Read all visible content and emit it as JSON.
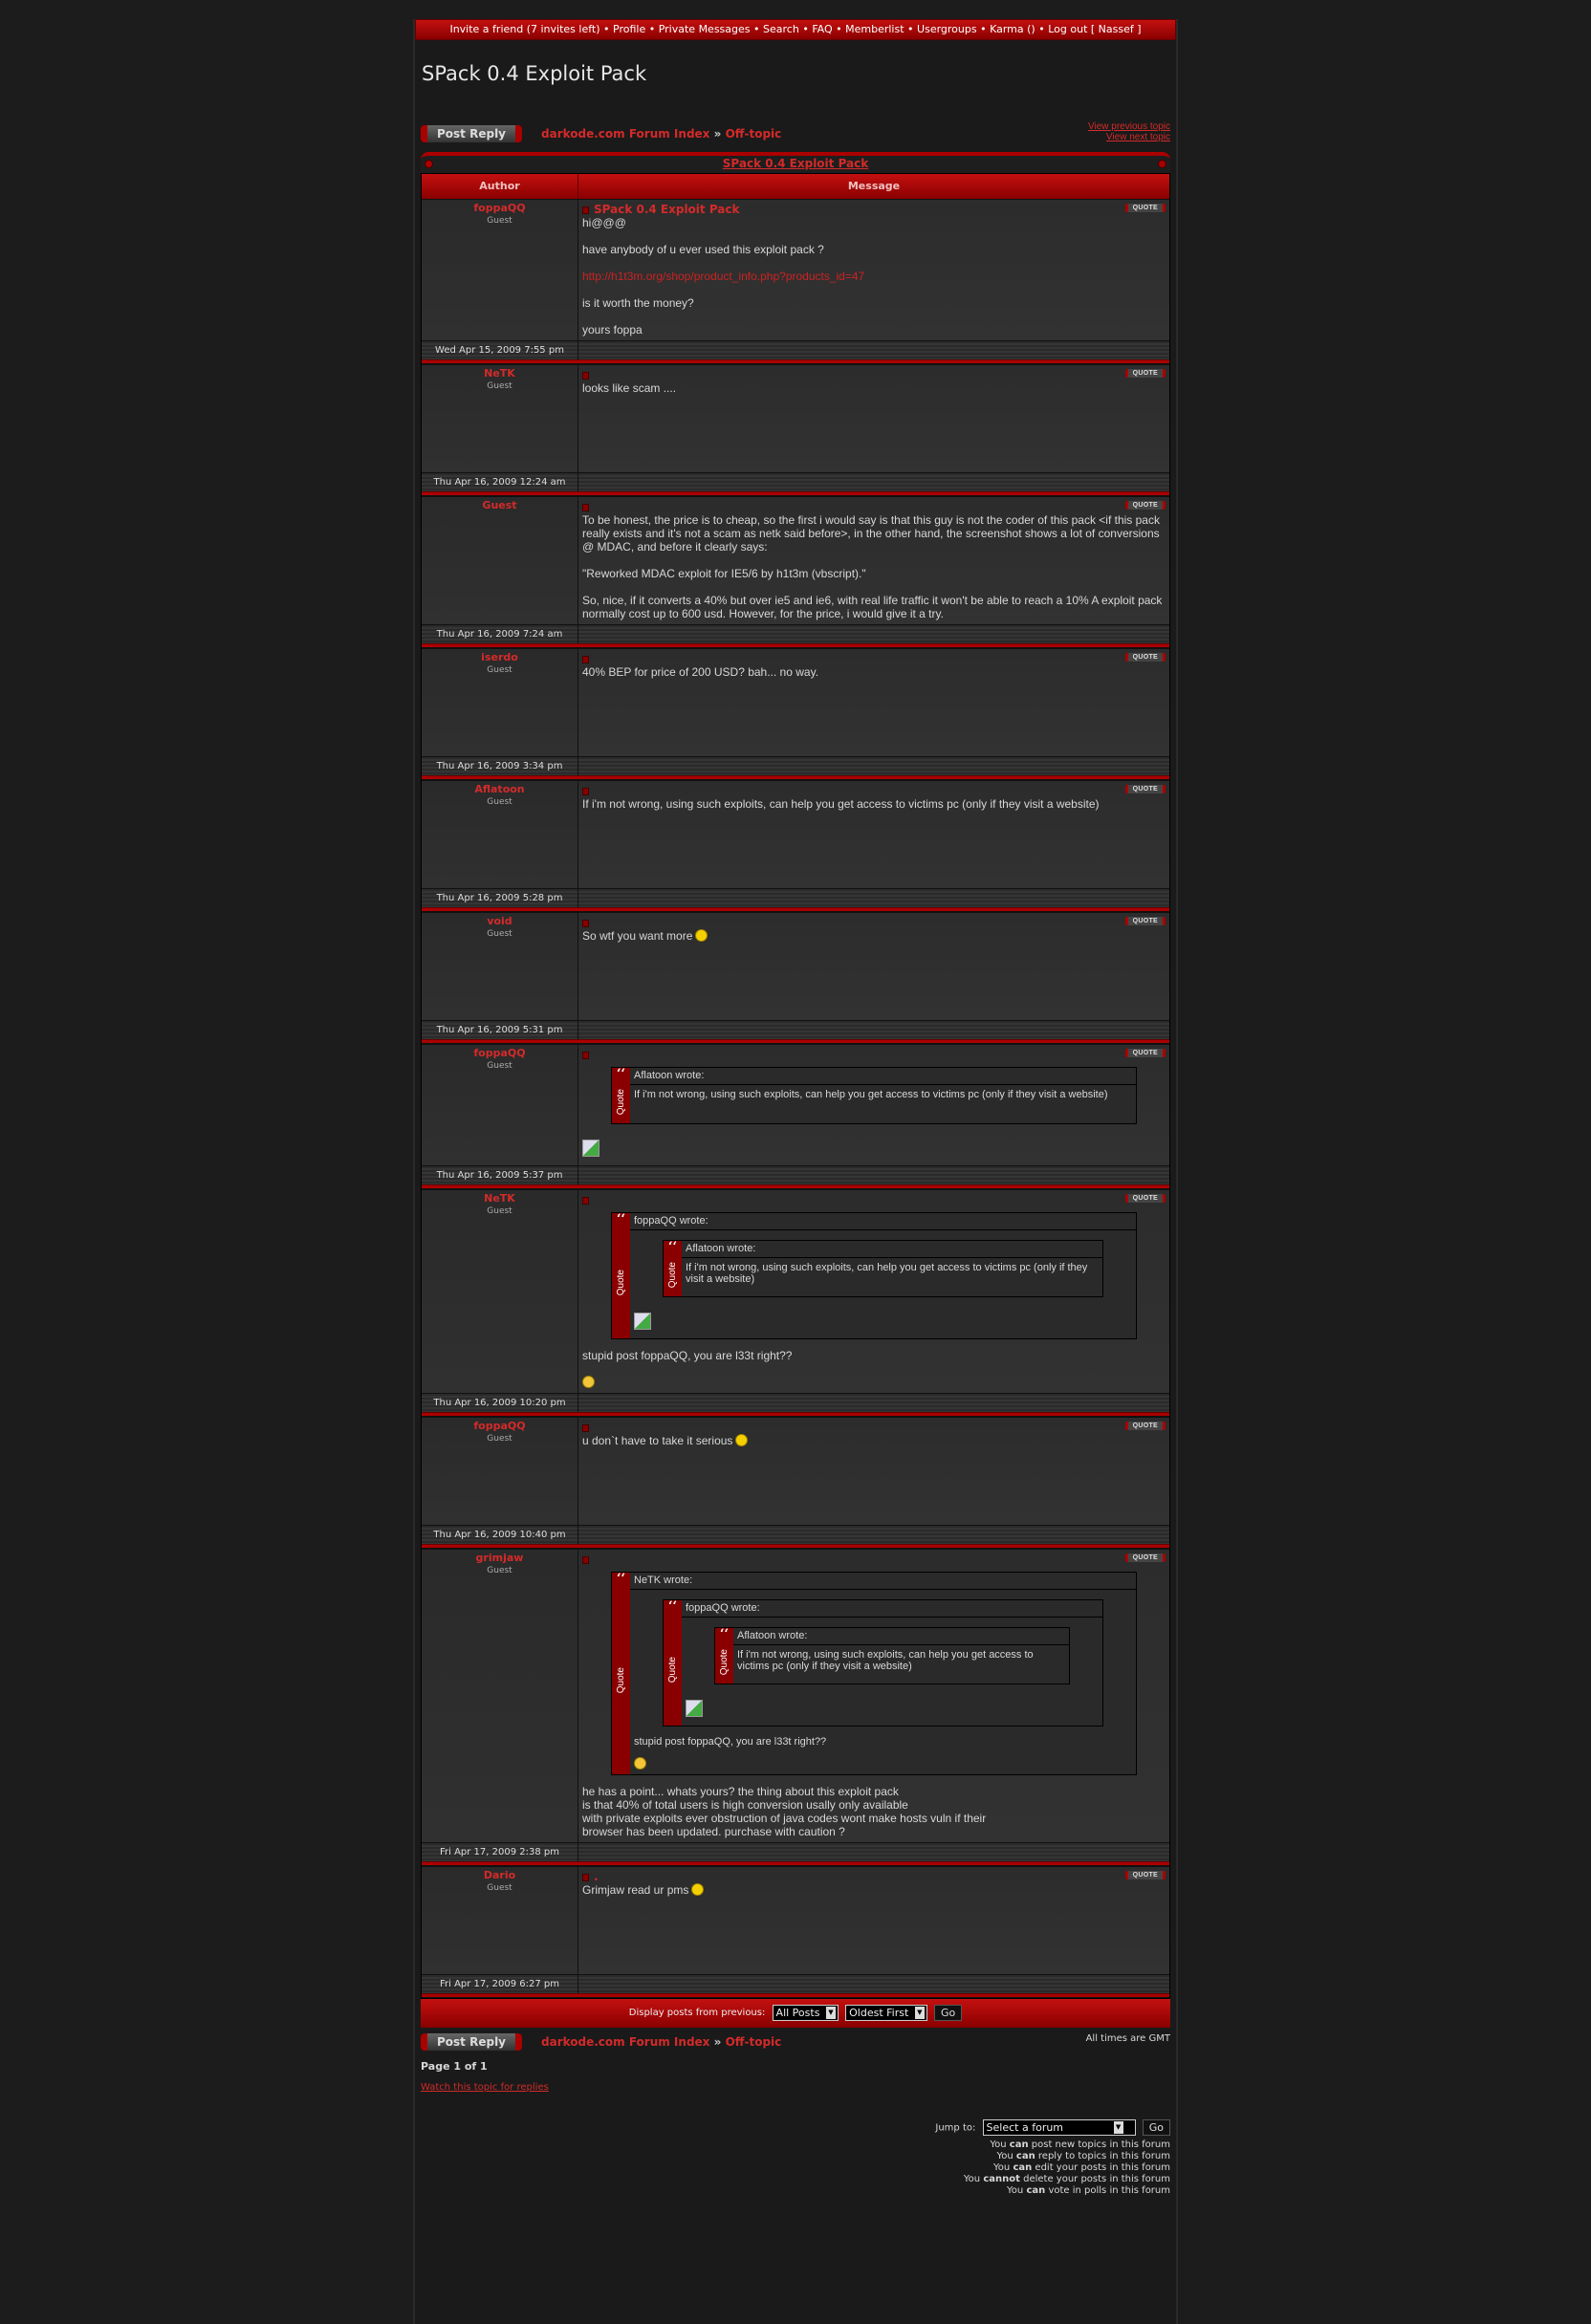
{
  "topnav": {
    "items": [
      "Invite a friend (7 invites left)",
      "Profile",
      "Private Messages",
      "Search",
      "FAQ",
      "Memberlist",
      "Usergroups",
      "Karma ()",
      "Log out [ Nassef ]"
    ],
    "separator": "•"
  },
  "page_title": "SPack 0.4 Exploit Pack",
  "post_reply_label": "Post Reply",
  "breadcrumb": {
    "forum_index": "darkode.com Forum Index",
    "separator": "»",
    "forum": "Off-topic"
  },
  "view_previous": "View previous topic",
  "view_next": "View next topic",
  "topic_title": "SPack 0.4 Exploit Pack",
  "columns": {
    "author": "Author",
    "message": "Message"
  },
  "quote_button": "QUOTE",
  "quote_side_label": "Quote",
  "quote_mark": "‘‘",
  "accent_color": "#b00000",
  "link_color": "#d42a2a",
  "posts": [
    {
      "author": "foppaQQ",
      "role": "Guest",
      "subject": "SPack 0.4 Exploit Pack",
      "date": "Wed Apr 15, 2009 7:55 pm",
      "content": [
        {
          "type": "text",
          "text": "hi@@@"
        },
        {
          "type": "text",
          "text": "have anybody of u ever used this exploit pack ?"
        },
        {
          "type": "link",
          "text": "http://h1t3m.org/shop/product_info.php?products_id=47"
        },
        {
          "type": "text",
          "text": "is it worth the money?"
        },
        {
          "type": "text",
          "text": "yours foppa"
        }
      ]
    },
    {
      "author": "NeTK",
      "role": "Guest",
      "subject": "",
      "date": "Thu Apr 16, 2009 12:24 am",
      "content": [
        {
          "type": "text",
          "text": "looks like scam ...."
        }
      ]
    },
    {
      "author": "Guest",
      "role": "",
      "subject": "",
      "date": "Thu Apr 16, 2009 7:24 am",
      "content": [
        {
          "type": "text",
          "text": "To be honest, the price is to cheap, so the first i would say is that this guy is not the coder of this pack <if this pack really exists and it's not a scam as netk said before>, in the other hand, the screenshot shows a lot of conversions @ MDAC, and before it clearly says:"
        },
        {
          "type": "text",
          "text": "\"Reworked MDAC exploit for IE5/6 by h1t3m (vbscript).\""
        },
        {
          "type": "text",
          "text": "So, nice, if it converts a 40% but over ie5 and ie6, with real life traffic it won't be able to reach a 10% A exploit pack normally cost up to 600 usd. However, for the price, i would give it a try."
        }
      ]
    },
    {
      "author": "iserdo",
      "role": "Guest",
      "subject": "",
      "date": "Thu Apr 16, 2009 3:34 pm",
      "content": [
        {
          "type": "text",
          "text": "40% BEP for price of 200 USD? bah... no way."
        }
      ]
    },
    {
      "author": "Aflatoon",
      "role": "Guest",
      "subject": "",
      "date": "Thu Apr 16, 2009 5:28 pm",
      "content": [
        {
          "type": "text",
          "text": "If i'm not wrong, using such exploits, can help you get access to victims pc (only if they visit a website)"
        }
      ]
    },
    {
      "author": "void",
      "role": "Guest",
      "subject": "",
      "date": "Thu Apr 16, 2009 5:31 pm",
      "content": [
        {
          "type": "text",
          "text": "So wtf you want more",
          "smiley": "tongue-smiley"
        }
      ]
    },
    {
      "author": "foppaQQ",
      "role": "Guest",
      "subject": "",
      "date": "Thu Apr 16, 2009 5:37 pm",
      "content": [
        {
          "type": "quote",
          "header": "Aflatoon wrote:",
          "content": [
            {
              "type": "text",
              "text": "If i'm not wrong, using such exploits, can help you get access to victims pc (only if they visit a website)"
            }
          ]
        },
        {
          "type": "image"
        }
      ]
    },
    {
      "author": "NeTK",
      "role": "Guest",
      "subject": "",
      "date": "Thu Apr 16, 2009 10:20 pm",
      "content": [
        {
          "type": "quote",
          "header": "foppaQQ wrote:",
          "content": [
            {
              "type": "quote",
              "header": "Aflatoon wrote:",
              "content": [
                {
                  "type": "text",
                  "text": "If i'm not wrong, using such exploits, can help you get access to victims pc (only if they visit a website)"
                }
              ]
            },
            {
              "type": "image"
            }
          ]
        },
        {
          "type": "text",
          "text": "stupid post foppaQQ, you are l33t right??"
        },
        {
          "type": "smiley",
          "smiley": "dizzy-smiley"
        }
      ]
    },
    {
      "author": "foppaQQ",
      "role": "Guest",
      "subject": "",
      "date": "Thu Apr 16, 2009 10:40 pm",
      "content": [
        {
          "type": "text",
          "text": "u don`t have to take it serious",
          "smiley": "tongue-smiley"
        }
      ]
    },
    {
      "author": "grimjaw",
      "role": "Guest",
      "subject": "",
      "date": "Fri Apr 17, 2009 2:38 pm",
      "content": [
        {
          "type": "quote",
          "header": "NeTK wrote:",
          "content": [
            {
              "type": "quote",
              "header": "foppaQQ wrote:",
              "content": [
                {
                  "type": "quote",
                  "header": "Aflatoon wrote:",
                  "content": [
                    {
                      "type": "text",
                      "text": "If i'm not wrong, using such exploits, can help you get access to victims pc (only if they visit a website)"
                    }
                  ]
                },
                {
                  "type": "image"
                }
              ]
            },
            {
              "type": "text",
              "text": "stupid post foppaQQ, you are l33t right??"
            },
            {
              "type": "smiley",
              "smiley": "dizzy-smiley"
            }
          ]
        },
        {
          "type": "text",
          "text": "he has a point... whats yours? the thing about this exploit pack\nis that 40% of total users is high conversion usally only available\nwith private exploits ever obstruction of java codes wont make hosts vuln if their\nbrowser has been updated. purchase with caution ?"
        }
      ]
    },
    {
      "author": "Dario",
      "role": "Guest",
      "subject": ".",
      "date": "Fri Apr 17, 2009 6:27 pm",
      "content": [
        {
          "type": "text",
          "text": "Grimjaw read ur pms",
          "smiley": "tongue-smiley"
        }
      ]
    }
  ],
  "display_bar": {
    "label": "Display posts from previous:",
    "posts_select": "All Posts",
    "order_select": "Oldest First",
    "go": "Go"
  },
  "timezone": "All times are GMT",
  "page_of": "Page 1 of 1",
  "watch_topic": "Watch this topic for replies",
  "jump": {
    "label": "Jump to:",
    "select": "Select a forum",
    "go": "Go"
  },
  "permissions": [
    {
      "pre": "You",
      "bold": "can",
      "post": "post new topics in this forum"
    },
    {
      "pre": "You",
      "bold": "can",
      "post": "reply to topics in this forum"
    },
    {
      "pre": "You",
      "bold": "can",
      "post": "edit your posts in this forum"
    },
    {
      "pre": "You",
      "bold": "cannot",
      "post": "delete your posts in this forum"
    },
    {
      "pre": "You",
      "bold": "can",
      "post": "vote in polls in this forum"
    }
  ]
}
